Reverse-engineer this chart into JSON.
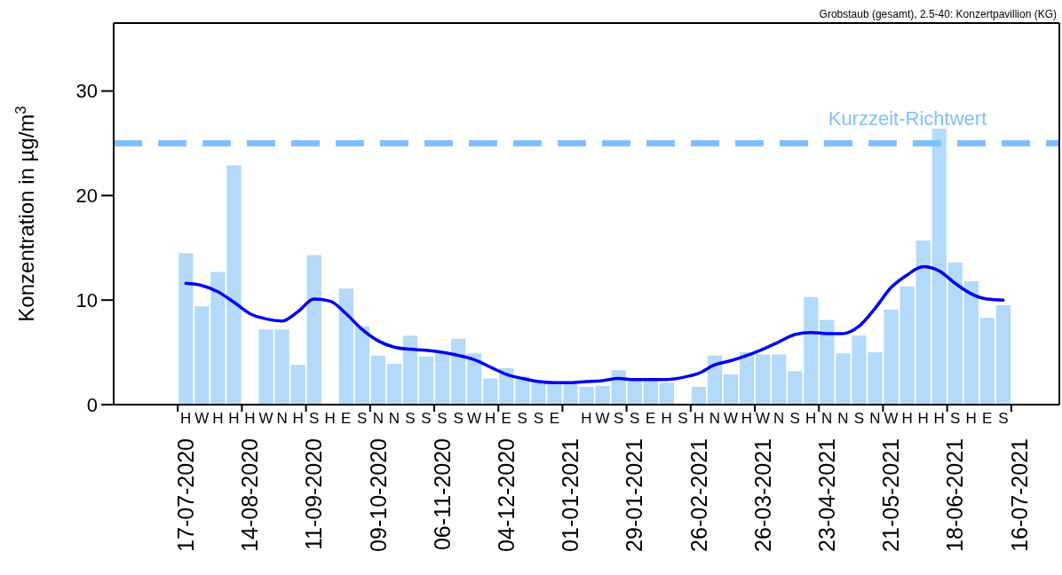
{
  "chart_data": {
    "type": "bar",
    "title": "Grobstaub (gesamt), 2.5-40: Konzertpavillion (KG)",
    "ylabel": "Konzentration in µg/m$^{3}$",
    "x": [
      "2020-07-20T12:00",
      "2020-07-27T12:00",
      "2020-08-03T12:00",
      "2020-08-10T12:00",
      "2020-08-17T12:00",
      "2020-08-24T12:00",
      "2020-08-31T12:00",
      "2020-09-07T12:00",
      "2020-09-14T12:00",
      "2020-09-21T12:00",
      "2020-09-28T12:00",
      "2020-10-05T12:00",
      "2020-10-12T12:00",
      "2020-10-19T12:00",
      "2020-10-26T12:00",
      "2020-11-02T12:00",
      "2020-11-09T12:00",
      "2020-11-16T12:00",
      "2020-11-23T12:00",
      "2020-11-30T12:00",
      "2020-12-07T12:00",
      "2020-12-14T12:00",
      "2020-12-21T12:00",
      "2020-12-28T12:00",
      "2021-01-04T12:00",
      "2021-01-11T12:00",
      "2021-01-18T12:00",
      "2021-01-25T12:00",
      "2021-02-01T12:00",
      "2021-02-08T12:00",
      "2021-02-15T12:00",
      "2021-02-22T12:00",
      "2021-03-01T12:00",
      "2021-03-08T12:00",
      "2021-03-15T12:00",
      "2021-03-22T12:00",
      "2021-03-29T12:00",
      "2021-04-05T12:00",
      "2021-04-12T12:00",
      "2021-04-19T12:00",
      "2021-04-26T12:00",
      "2021-05-03T12:00",
      "2021-05-10T12:00",
      "2021-05-17T12:00",
      "2021-05-24T12:00",
      "2021-05-31T12:00",
      "2021-06-07T12:00",
      "2021-06-14T12:00",
      "2021-06-21T12:00",
      "2021-06-28T12:00",
      "2021-07-05T12:00",
      "2021-07-12T12:00"
    ],
    "xlim": [
      "2020-06-19",
      "2021-08-06"
    ],
    "xticks": [
      {
        "value": "2020-07-17",
        "label": "17-07-2020"
      },
      {
        "value": "2020-08-14",
        "label": "14-08-2020"
      },
      {
        "value": "2020-09-11",
        "label": "11-09-2020"
      },
      {
        "value": "2020-10-09",
        "label": "09-10-2020"
      },
      {
        "value": "2020-11-06",
        "label": "06-11-2020"
      },
      {
        "value": "2020-12-04",
        "label": "04-12-2020"
      },
      {
        "value": "2021-01-01",
        "label": "01-01-2021"
      },
      {
        "value": "2021-01-29",
        "label": "29-01-2021"
      },
      {
        "value": "2021-02-26",
        "label": "26-02-2021"
      },
      {
        "value": "2021-03-26",
        "label": "26-03-2021"
      },
      {
        "value": "2021-04-23",
        "label": "23-04-2021"
      },
      {
        "value": "2021-05-21",
        "label": "21-05-2021"
      },
      {
        "value": "2021-06-18",
        "label": "18-06-2021"
      },
      {
        "value": "2021-07-16",
        "label": "16-07-2021"
      }
    ],
    "ylim": [
      0,
      36.5
    ],
    "yticks": [
      0,
      10,
      20,
      30
    ],
    "series": [
      {
        "color": "#b3d9fb",
        "value_labels": [
          "H",
          "W",
          "H",
          "H",
          "H",
          "W",
          "N",
          "H",
          "S",
          "H",
          "E",
          "S",
          "N",
          "N",
          "S",
          "S",
          "S",
          "S",
          "W",
          "H",
          "E",
          "S",
          "S",
          "E",
          null,
          "H",
          "W",
          "S",
          "S",
          "E",
          "H",
          "S",
          "H",
          "N",
          "W",
          "H",
          "W",
          "N",
          "S",
          "H",
          "N",
          "N",
          "S",
          "N",
          "W",
          "H",
          "H",
          "H",
          "S",
          "H",
          "E",
          "S"
        ],
        "values": [
          14.5,
          9.4,
          12.7,
          22.9,
          null,
          7.2,
          7.2,
          3.8,
          14.3,
          null,
          11.1,
          7.5,
          4.7,
          3.9,
          6.6,
          4.6,
          4.9,
          6.3,
          4.9,
          2.5,
          3.5,
          2.7,
          2.1,
          2.0,
          2.0,
          1.7,
          1.8,
          3.3,
          2.4,
          2.5,
          2.1,
          null,
          1.7,
          4.7,
          2.9,
          5.0,
          4.8,
          4.8,
          3.2,
          10.3,
          8.1,
          4.9,
          6.6,
          5.0,
          9.1,
          11.3,
          15.7,
          26.4,
          13.6,
          11.8,
          8.3,
          9.5
        ]
      },
      {
        "type": "line",
        "color": "#0000ee",
        "values": [
          11.6,
          11.4,
          10.8,
          9.8,
          8.7,
          8.2,
          8.0,
          8.9,
          10.1,
          9.9,
          8.7,
          7.2,
          6.1,
          5.5,
          5.3,
          5.2,
          5.0,
          4.7,
          4.3,
          3.6,
          2.9,
          2.5,
          2.2,
          2.1,
          2.1,
          2.2,
          2.3,
          2.5,
          2.4,
          2.4,
          2.4,
          2.6,
          3.0,
          3.8,
          4.2,
          4.7,
          5.3,
          6.0,
          6.7,
          6.9,
          6.8,
          6.8,
          7.5,
          9.2,
          11.2,
          12.4,
          13.2,
          12.8,
          11.6,
          10.6,
          10.1,
          10.0
        ]
      }
    ],
    "ref_lines": [
      {
        "axis": "y",
        "value": 25,
        "label": "Kurzzeit-Richtwert",
        "color": "#80bfff",
        "line_style": "dashed"
      }
    ]
  }
}
